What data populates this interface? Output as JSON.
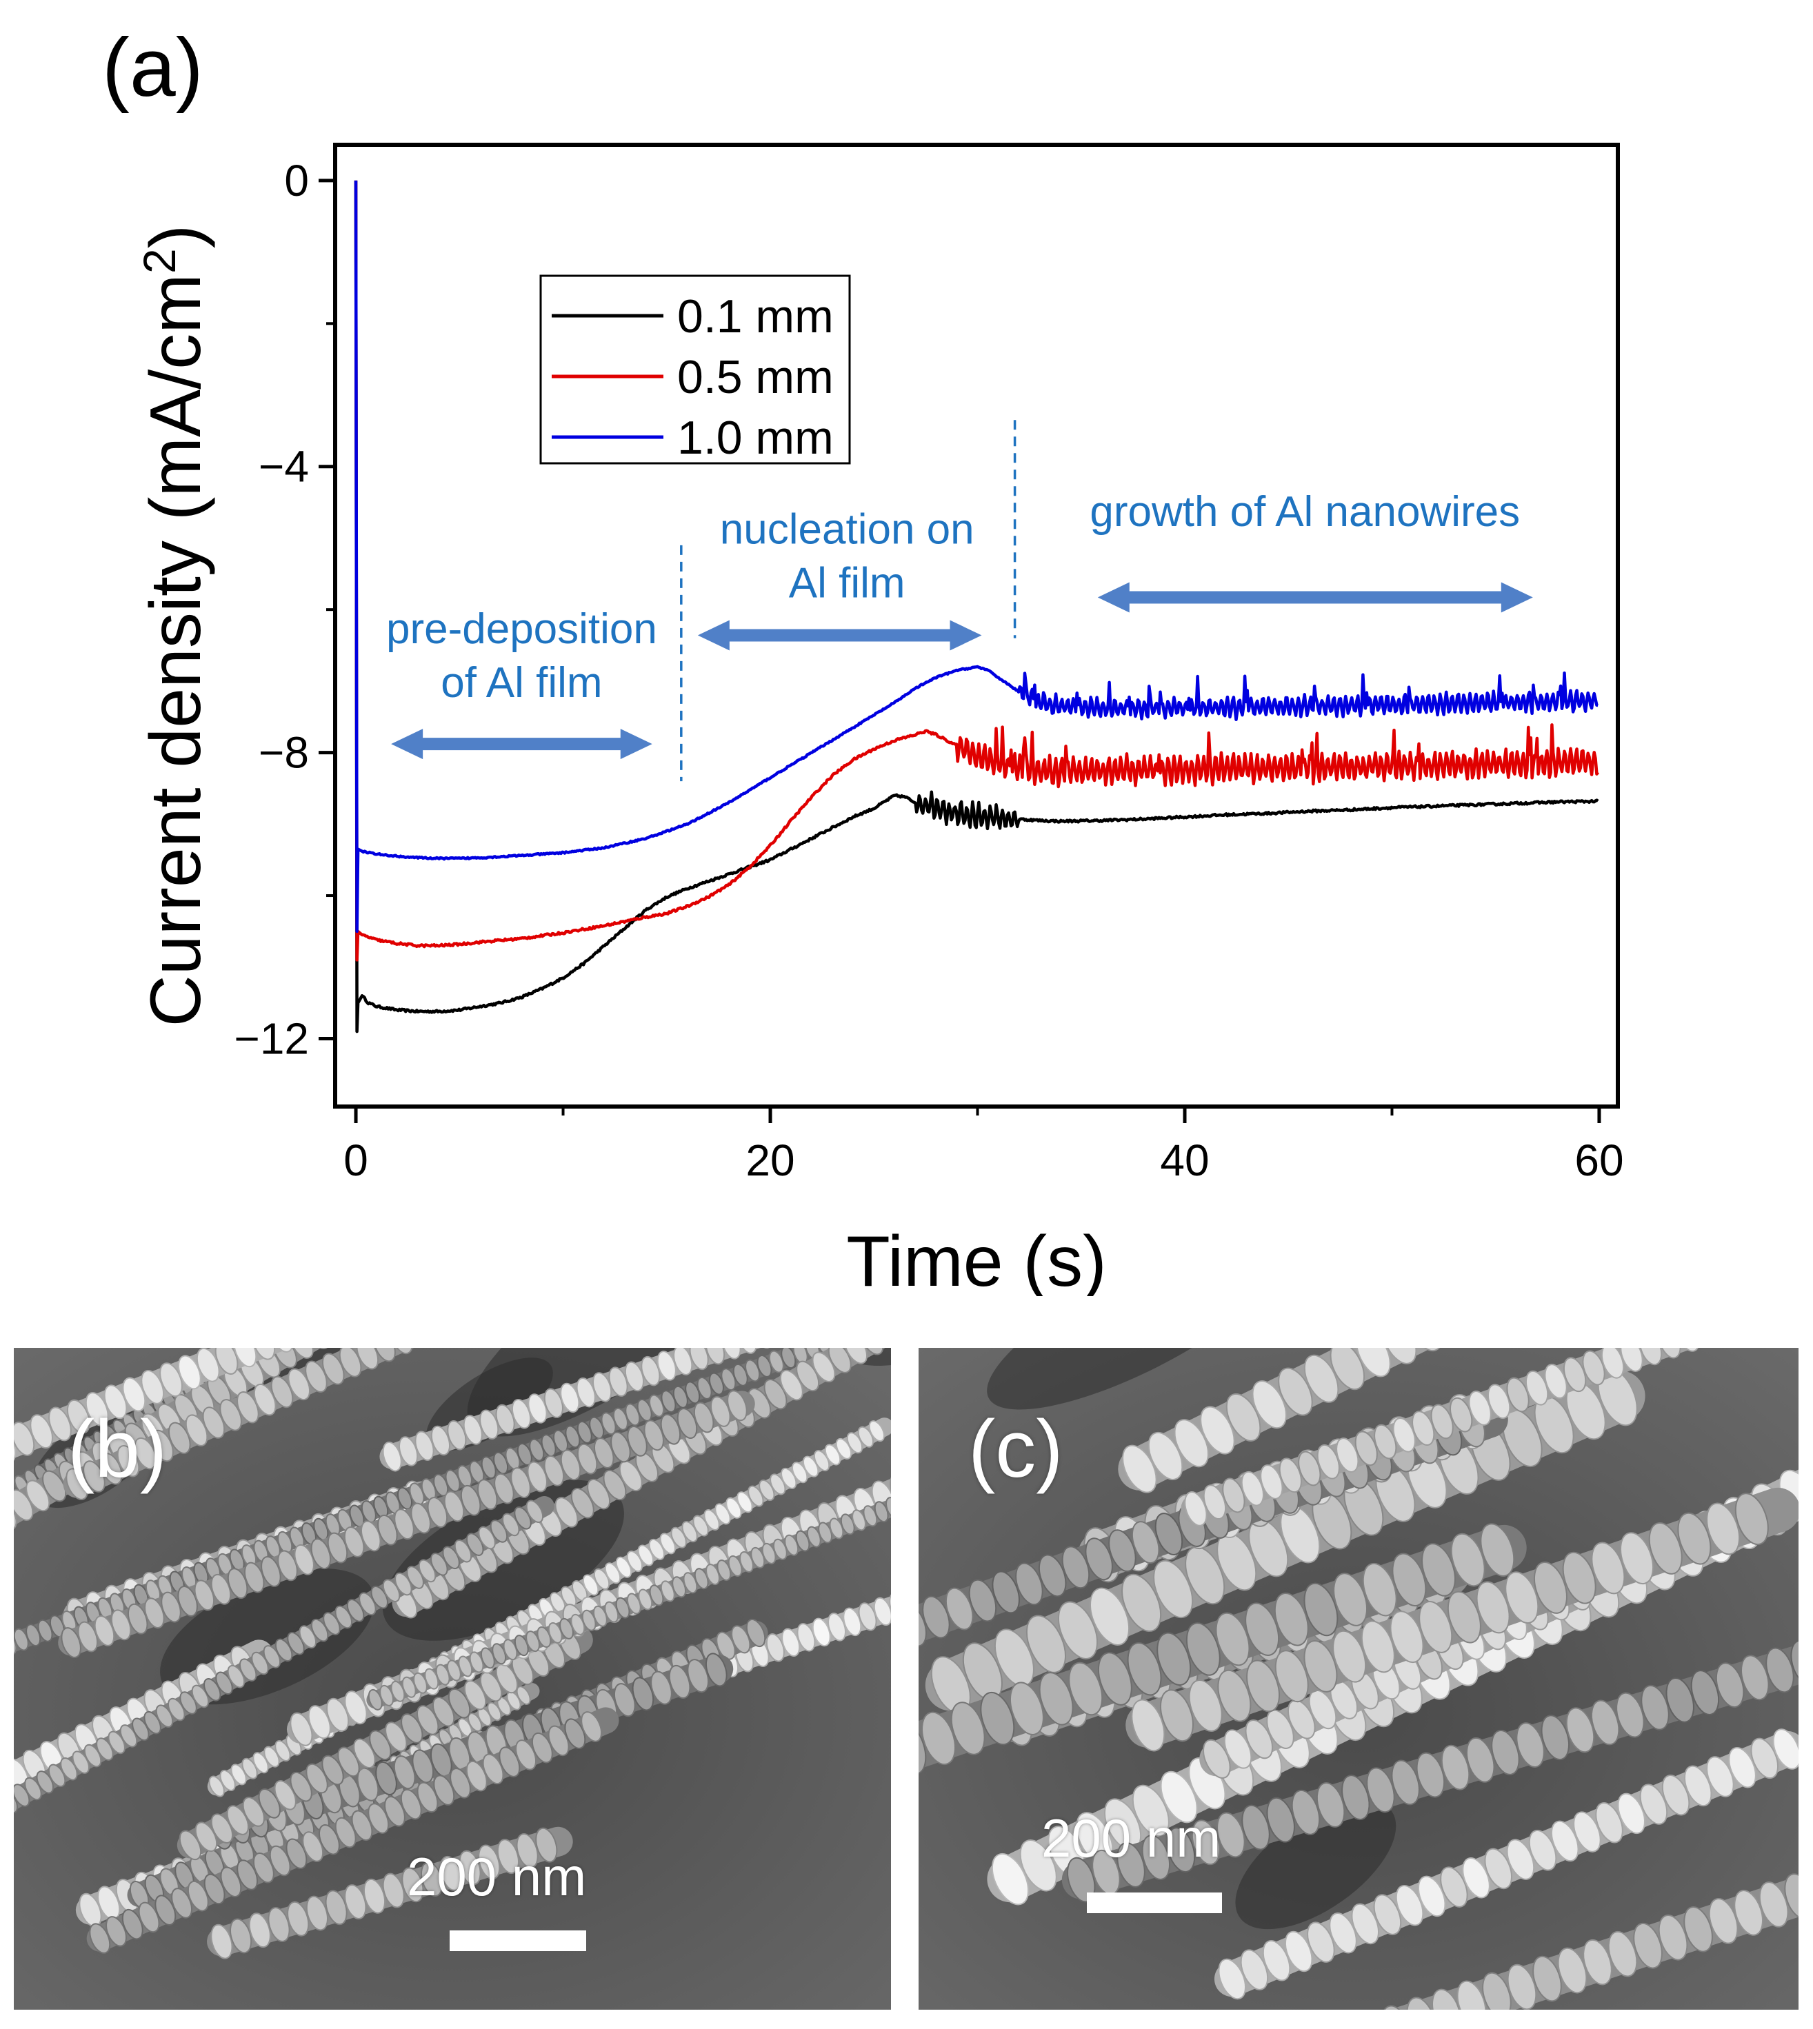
{
  "panel_labels": {
    "a": "(a)",
    "b": "(b)",
    "c": "(c)"
  },
  "chart_data": {
    "type": "line",
    "title": "",
    "xlabel": "Time (s)",
    "ylabel": "Current density (mA/cm",
    "ylabel_sup": "2",
    "ylabel_close": ")",
    "xlim": [
      -1,
      60.9
    ],
    "ylim": [
      -12.95,
      0.5
    ],
    "xticks": [
      0,
      20,
      40,
      60
    ],
    "xtick_labels": [
      "0",
      "20",
      "40",
      "60"
    ],
    "xminor": [
      10,
      30,
      50
    ],
    "yticks": [
      0,
      -4,
      -8,
      -12
    ],
    "ytick_labels": [
      "0",
      "−4",
      "−8",
      "−12"
    ],
    "yminor": [
      -2,
      -6,
      -10
    ],
    "grid": false,
    "legend_position": "upper-left",
    "series": [
      {
        "name": "0.1 mm",
        "color": "#000000",
        "x": [
          0,
          0.05,
          0.1,
          0.3,
          0.6,
          1,
          2,
          3,
          4,
          5,
          6,
          7,
          8,
          9,
          10,
          11,
          12,
          13,
          14,
          15,
          16,
          17,
          18,
          19,
          20,
          21,
          22,
          23,
          24,
          25,
          26,
          26.5,
          27,
          28,
          29,
          30,
          31,
          32,
          33,
          34,
          36,
          38,
          40,
          42,
          44,
          46,
          48,
          50,
          52,
          54,
          56,
          58,
          60
        ],
        "y": [
          0,
          -11.9,
          -11.5,
          -11.4,
          -11.5,
          -11.55,
          -11.6,
          -11.62,
          -11.62,
          -11.6,
          -11.55,
          -11.5,
          -11.42,
          -11.3,
          -11.15,
          -10.95,
          -10.7,
          -10.45,
          -10.2,
          -10.02,
          -9.9,
          -9.8,
          -9.7,
          -9.6,
          -9.5,
          -9.35,
          -9.2,
          -9.05,
          -8.9,
          -8.78,
          -8.6,
          -8.62,
          -8.7,
          -8.78,
          -8.85,
          -8.9,
          -8.92,
          -8.93,
          -8.95,
          -8.96,
          -8.95,
          -8.93,
          -8.9,
          -8.87,
          -8.85,
          -8.82,
          -8.8,
          -8.77,
          -8.75,
          -8.73,
          -8.71,
          -8.69,
          -8.68
        ],
        "noise_start": 27,
        "noise_end": 32,
        "noise_amp": 0.16,
        "fine_amp": 0.03
      },
      {
        "name": "0.5 mm",
        "color": "#e00000",
        "x": [
          0,
          0.05,
          0.1,
          0.3,
          1,
          2,
          3,
          4,
          5,
          6,
          8,
          10,
          12,
          14,
          15,
          16,
          17,
          18,
          19,
          20,
          21,
          22,
          23,
          24,
          25,
          26,
          27,
          27.5,
          28,
          29,
          30,
          31,
          32,
          33,
          34,
          36,
          38,
          40,
          42,
          44,
          46,
          48,
          50,
          52,
          54,
          56,
          58,
          60
        ],
        "y": [
          0,
          -10.9,
          -10.5,
          -10.55,
          -10.62,
          -10.67,
          -10.7,
          -10.7,
          -10.68,
          -10.65,
          -10.6,
          -10.52,
          -10.42,
          -10.3,
          -10.25,
          -10.15,
          -10.02,
          -9.85,
          -9.6,
          -9.3,
          -8.95,
          -8.62,
          -8.32,
          -8.1,
          -7.95,
          -7.83,
          -7.75,
          -7.7,
          -7.75,
          -7.9,
          -8.05,
          -8.15,
          -8.22,
          -8.25,
          -8.26,
          -8.26,
          -8.25,
          -8.24,
          -8.23,
          -8.22,
          -8.21,
          -8.2,
          -8.19,
          -8.18,
          -8.16,
          -8.15,
          -8.14,
          -8.12
        ],
        "noise_start": 29,
        "noise_end": 60,
        "noise_amp": 0.18,
        "fine_amp": 0.03
      },
      {
        "name": "1.0 mm",
        "color": "#0000e0",
        "x": [
          0,
          0.05,
          0.1,
          0.3,
          1,
          2,
          3,
          4,
          5,
          6,
          8,
          10,
          12,
          14,
          16,
          18,
          20,
          22,
          24,
          26,
          27,
          28,
          29,
          30,
          30.5,
          31,
          32,
          33,
          34,
          36,
          38,
          40,
          42,
          44,
          46,
          48,
          50,
          52,
          54,
          56,
          58,
          60
        ],
        "y": [
          0,
          -10.5,
          -9.35,
          -9.38,
          -9.42,
          -9.45,
          -9.47,
          -9.48,
          -9.48,
          -9.47,
          -9.44,
          -9.4,
          -9.33,
          -9.2,
          -9.0,
          -8.7,
          -8.35,
          -8.0,
          -7.65,
          -7.3,
          -7.1,
          -6.95,
          -6.85,
          -6.8,
          -6.85,
          -6.95,
          -7.15,
          -7.3,
          -7.35,
          -7.38,
          -7.38,
          -7.38,
          -7.37,
          -7.36,
          -7.35,
          -7.34,
          -7.33,
          -7.32,
          -7.31,
          -7.3,
          -7.29,
          -7.27
        ],
        "noise_start": 32,
        "noise_end": 60,
        "noise_amp": 0.13,
        "fine_amp": 0.02
      }
    ],
    "annotations": [
      {
        "kind": "text",
        "lines": [
          "pre-deposition",
          "of Al film"
        ],
        "x": 8,
        "y": -6.47,
        "color": "#1e73c0"
      },
      {
        "kind": "text",
        "lines": [
          "nucleation on",
          "Al film"
        ],
        "x": 23.7,
        "y": -5.08,
        "color": "#1e73c0"
      },
      {
        "kind": "text",
        "lines": [
          "growth of  Al nanowires"
        ],
        "x": 45.8,
        "y": -4.83,
        "color": "#1e73c0"
      },
      {
        "kind": "double_arrow",
        "x1": 1.7,
        "x2": 14.3,
        "y": -7.88,
        "color": "#5080c8"
      },
      {
        "kind": "double_arrow",
        "x1": 16.5,
        "x2": 30.2,
        "y": -6.36,
        "color": "#5080c8"
      },
      {
        "kind": "double_arrow",
        "x1": 35.8,
        "x2": 56.8,
        "y": -5.83,
        "color": "#5080c8"
      },
      {
        "kind": "vline",
        "x": 15.7,
        "y1": -5.1,
        "y2": -8.4,
        "color": "#1e73c0"
      },
      {
        "kind": "vline",
        "x": 31.8,
        "y1": -3.35,
        "y2": -6.4,
        "color": "#1e73c0"
      }
    ]
  },
  "sem_images": [
    {
      "id": "b",
      "scale_label": "200 nm"
    },
    {
      "id": "c",
      "scale_label": "200 nm"
    }
  ]
}
